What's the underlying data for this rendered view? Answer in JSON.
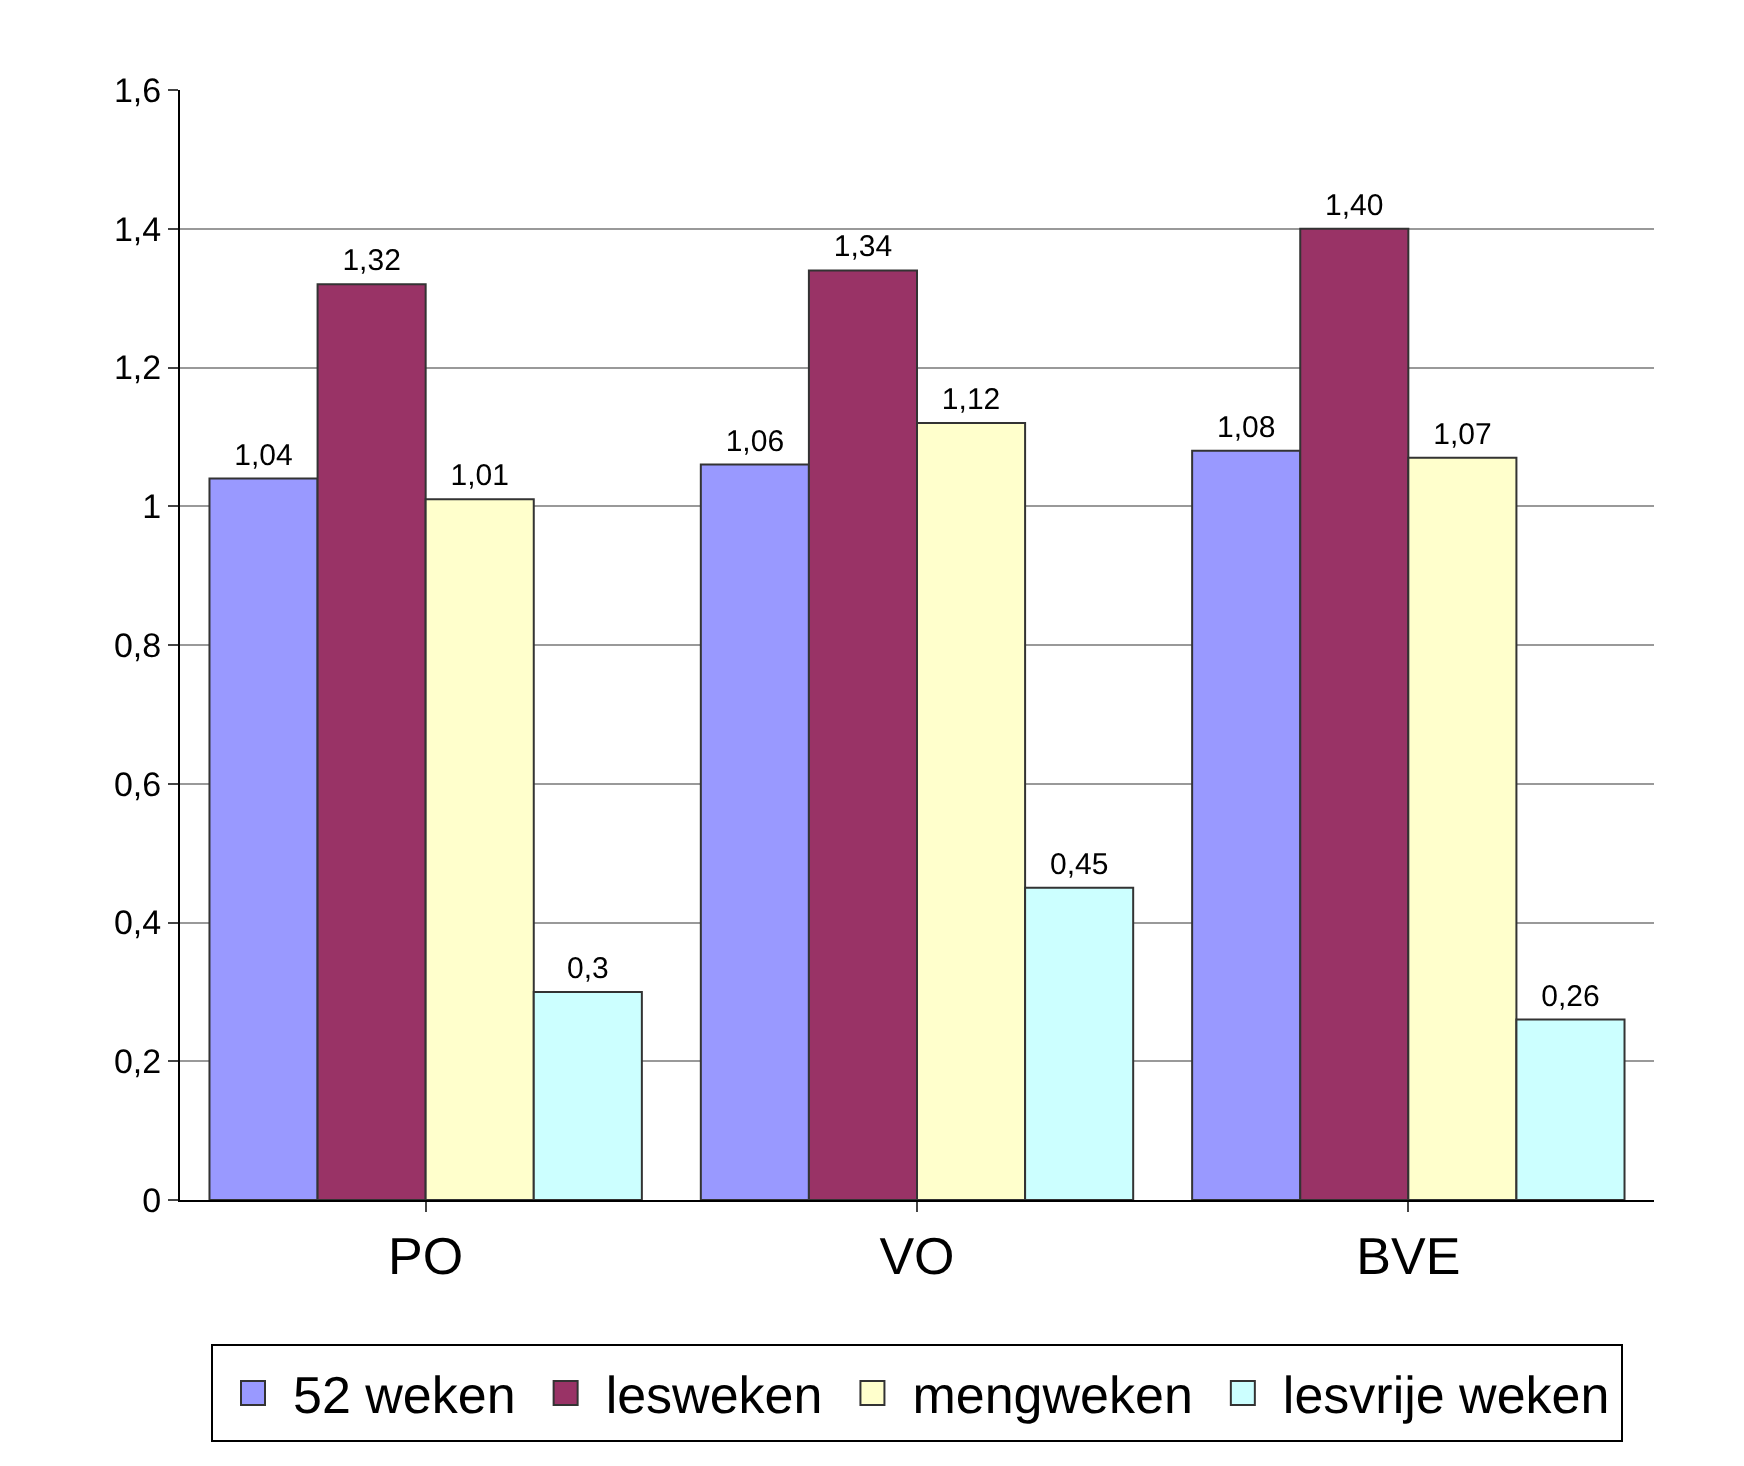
{
  "chart_data": {
    "type": "bar",
    "categories": [
      "PO",
      "VO",
      "BVE"
    ],
    "series": [
      {
        "name": "52 weken",
        "color": "#9999ff",
        "values": [
          1.04,
          1.06,
          1.08
        ],
        "value_labels": [
          "1,04",
          "1,06",
          "1,08"
        ]
      },
      {
        "name": "lesweken",
        "color": "#993366",
        "values": [
          1.32,
          1.34,
          1.4
        ],
        "value_labels": [
          "1,32",
          "1,34",
          "1,40"
        ]
      },
      {
        "name": "mengweken",
        "color": "#ffffcc",
        "values": [
          1.01,
          1.12,
          1.07
        ],
        "value_labels": [
          "1,01",
          "1,12",
          "1,07"
        ]
      },
      {
        "name": "lesvrije weken",
        "color": "#ccffff",
        "values": [
          0.3,
          0.45,
          0.26
        ],
        "value_labels": [
          "0,3",
          "0,45",
          "0,26"
        ]
      }
    ],
    "ylim": [
      0,
      1.6
    ],
    "yticks": [
      0,
      {
        "value": 0.2,
        "label": "0,2"
      },
      {
        "value": 0.4,
        "label": "0,4"
      },
      {
        "value": 0.6,
        "label": "0,6"
      },
      {
        "value": 0.8,
        "label": "0,8"
      },
      1,
      {
        "value": 1.2,
        "label": "1,2"
      },
      {
        "value": 1.4,
        "label": "1,4"
      },
      {
        "value": 1.6,
        "label": "1,6"
      }
    ],
    "grid": "y",
    "legend": "bottom"
  }
}
